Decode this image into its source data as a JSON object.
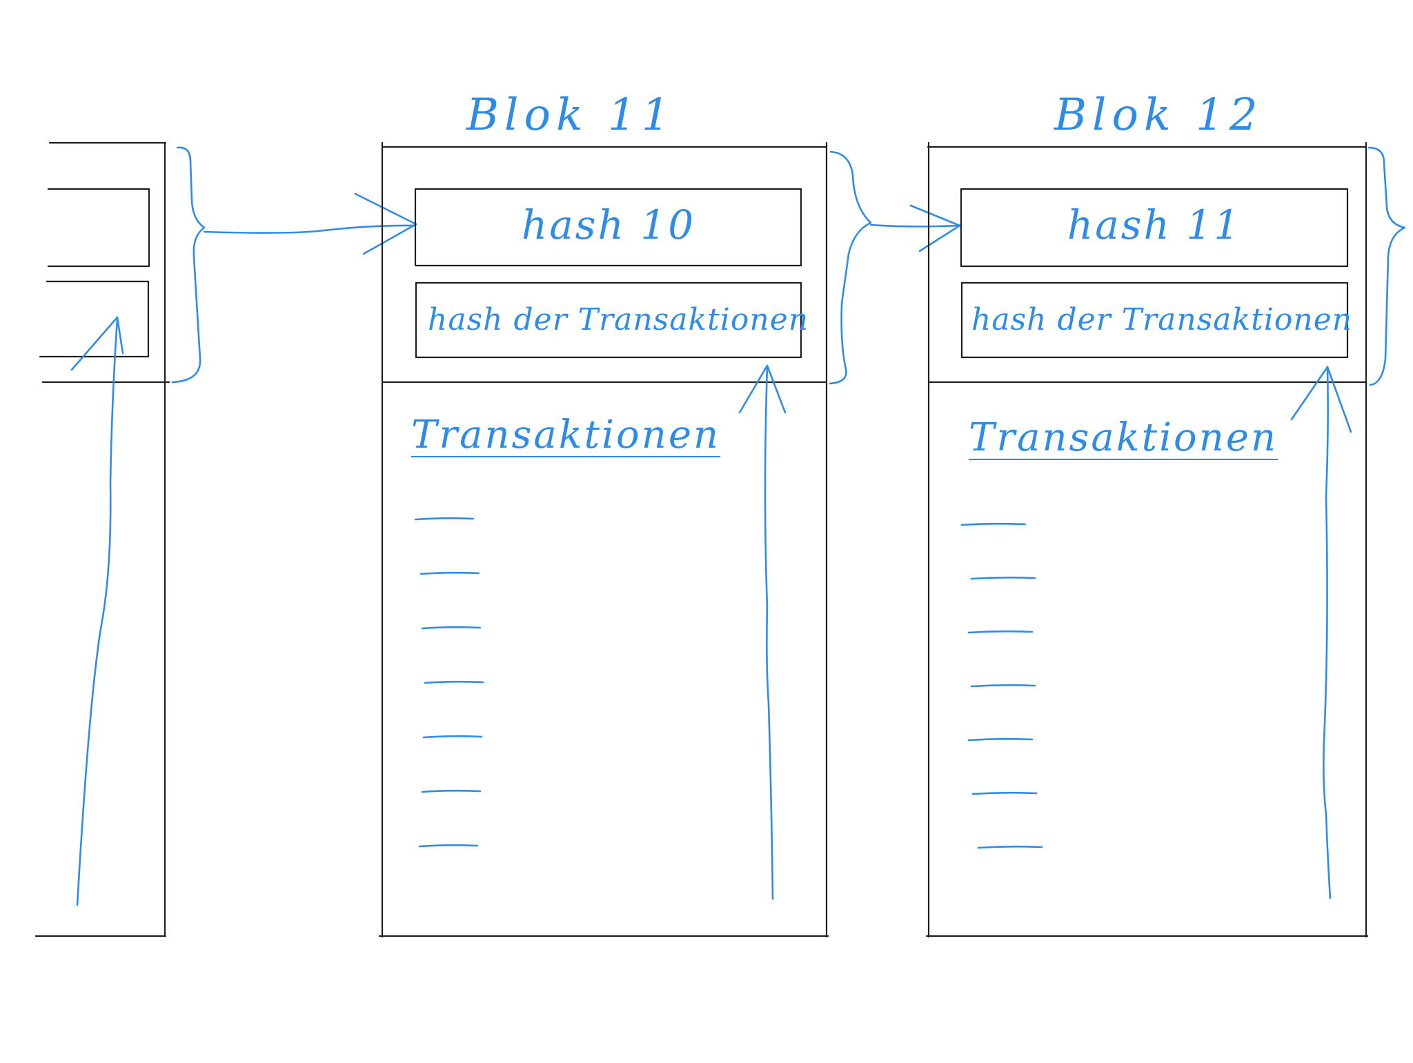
{
  "colors": {
    "ink": "#2f8ce6",
    "frame": "#1e1e1e",
    "background": "#ffffff"
  },
  "blocks": [
    {
      "title": "Blok 11",
      "prev_hash_label": "hash 10",
      "tx_hash_label": "hash der Transaktionen",
      "tx_heading": "Transaktionen",
      "transaction_count": 7
    },
    {
      "title": "Blok 12",
      "prev_hash_label": "hash 11",
      "tx_hash_label": "hash der Transaktionen",
      "tx_heading": "Transaktionen",
      "transaction_count": 7
    }
  ]
}
